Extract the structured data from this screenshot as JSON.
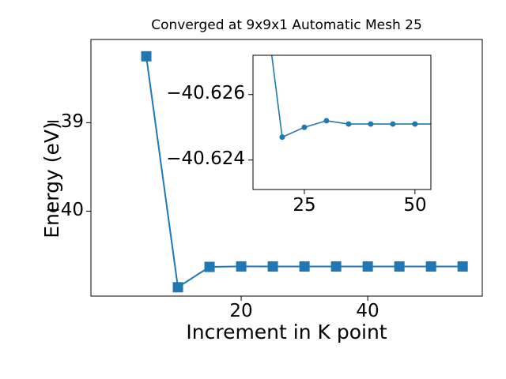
{
  "chart_data": {
    "type": "line",
    "title": "Converged at 9x9x1 Automatic Mesh 25",
    "xlabel": "Increment in K point",
    "ylabel": "Energy (eV)",
    "grid": false,
    "legend": false,
    "colors": {
      "line": "#1f77b4",
      "axis": "#000000",
      "background": "#ffffff"
    },
    "main": {
      "x": [
        5,
        10,
        15,
        20,
        25,
        30,
        35,
        40,
        45,
        50,
        55
      ],
      "y": [
        -38.25,
        -40.86,
        -40.63,
        -40.6247,
        -40.625,
        -40.6252,
        -40.6251,
        -40.6251,
        -40.6251,
        -40.6251,
        -40.6251
      ],
      "marker": "square",
      "xlim": [
        -3.75,
        58.1
      ],
      "ylim_screen": [
        -38.06,
        -40.96
      ],
      "x_ticks": [
        {
          "v": 20,
          "label": "20"
        },
        {
          "v": 40,
          "label": "40"
        }
      ],
      "y_ticks": [
        {
          "v": -39,
          "label": "−39"
        },
        {
          "v": -40,
          "label": "−40"
        }
      ]
    },
    "inset": {
      "x": [
        15,
        20,
        25,
        30,
        35,
        40,
        45,
        50,
        55
      ],
      "y": [
        -40.63,
        -40.6247,
        -40.625,
        -40.6252,
        -40.6251,
        -40.6251,
        -40.6251,
        -40.6251,
        -40.6251
      ],
      "marker": "circle",
      "xlim": [
        13.4,
        53.6
      ],
      "ylim_screen": [
        -40.6272,
        -40.6231
      ],
      "x_ticks": [
        {
          "v": 25,
          "label": "25"
        },
        {
          "v": 50,
          "label": "50"
        }
      ],
      "y_ticks": [
        {
          "v": -40.626,
          "label": "−40.626"
        },
        {
          "v": -40.624,
          "label": "−40.624"
        }
      ]
    }
  }
}
